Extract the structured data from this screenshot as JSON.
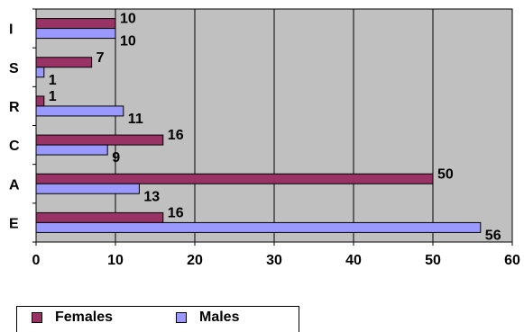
{
  "chart_data": {
    "type": "bar",
    "orientation": "horizontal",
    "categories": [
      "I",
      "S",
      "R",
      "C",
      "A",
      "E"
    ],
    "series": [
      {
        "name": "Females",
        "color": "#993366",
        "values": [
          10,
          7,
          1,
          16,
          50,
          16
        ]
      },
      {
        "name": "Males",
        "color": "#9999FF",
        "values": [
          10,
          1,
          11,
          9,
          13,
          56
        ]
      }
    ],
    "xlim": [
      0,
      60
    ],
    "xticks": [
      "0",
      "10",
      "20",
      "30",
      "40",
      "50",
      "60"
    ],
    "grid": true,
    "plot_background": "#C0C0C0",
    "legend_position": "bottom-left"
  }
}
